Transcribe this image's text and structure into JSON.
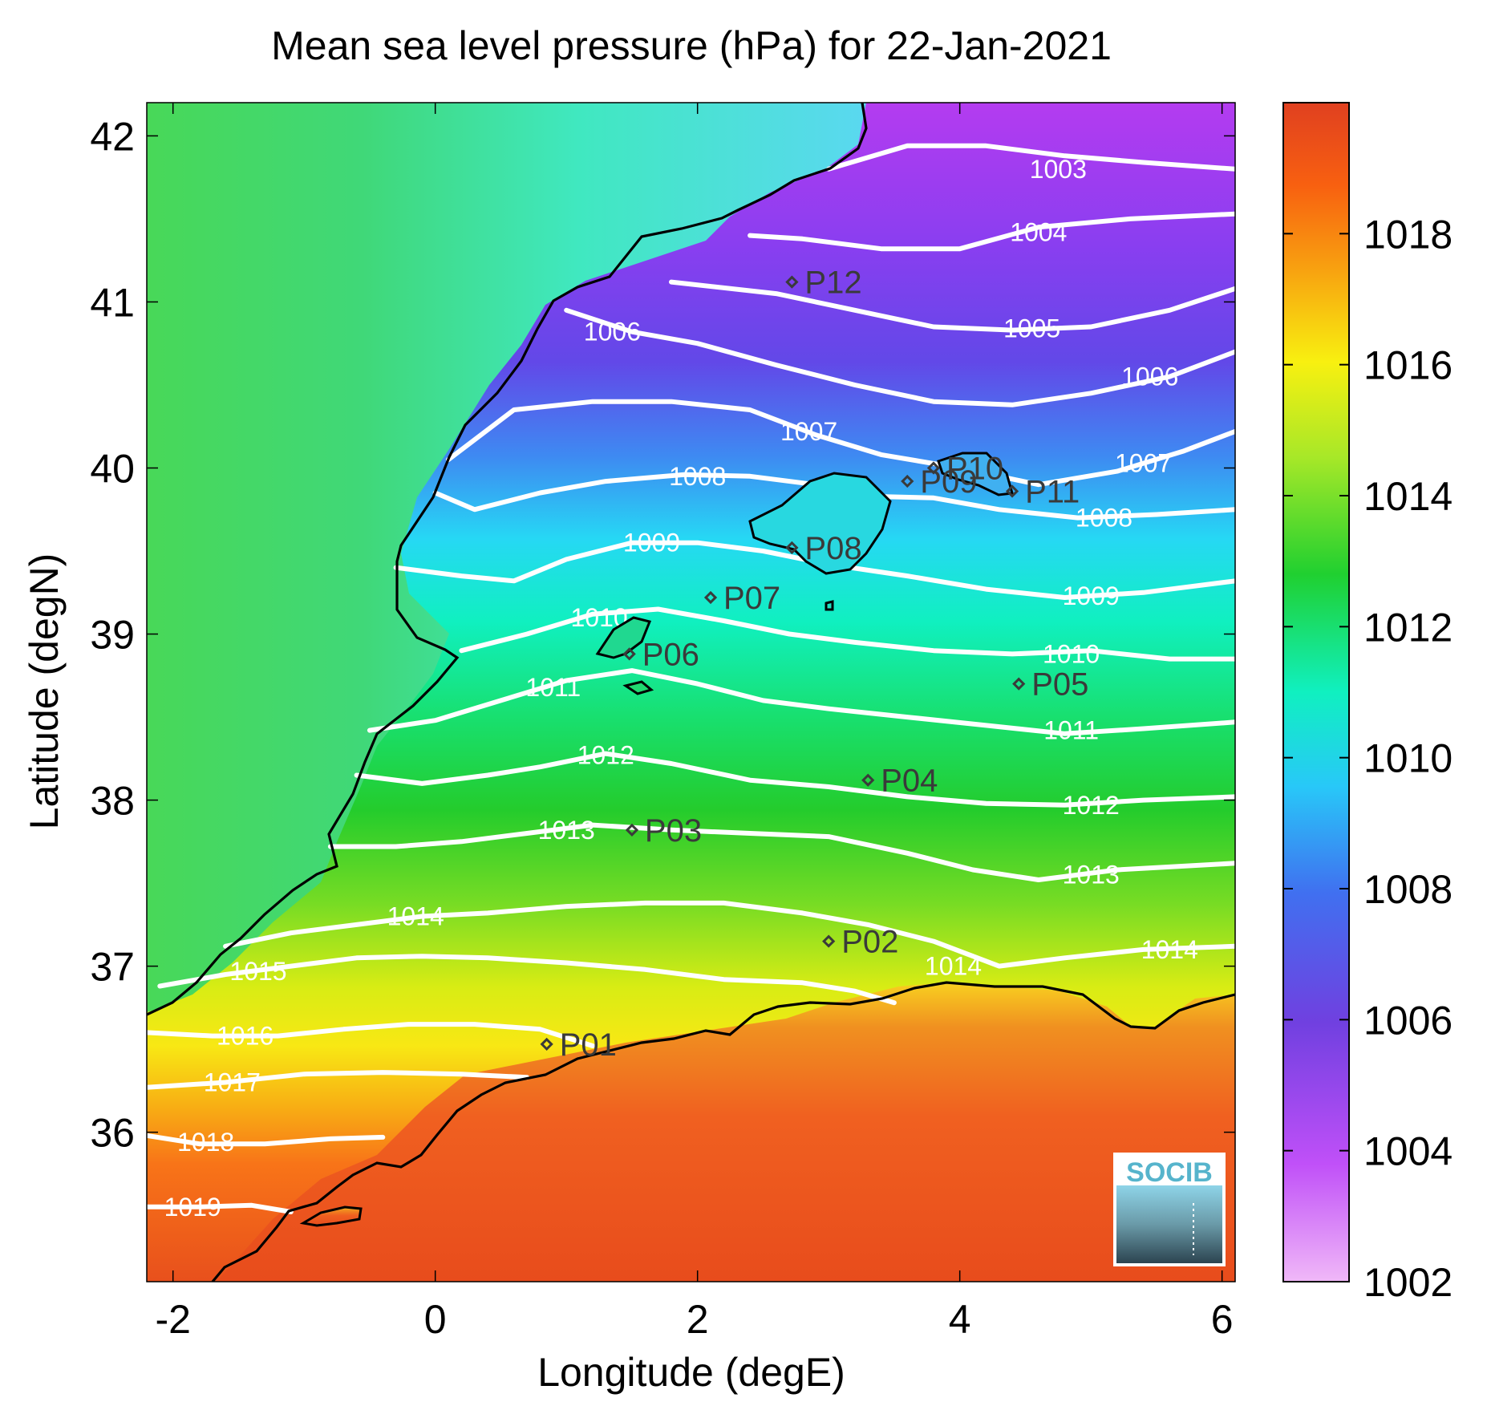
{
  "title": "Mean sea level pressure (hPa) for 22-Jan-2021",
  "xlabel": "Longitude (degE)",
  "ylabel": "Latitude (degN)",
  "x_ticks": [
    {
      "value": -2,
      "label": "-2"
    },
    {
      "value": 0,
      "label": "0"
    },
    {
      "value": 2,
      "label": "2"
    },
    {
      "value": 4,
      "label": "4"
    },
    {
      "value": 6,
      "label": "6"
    }
  ],
  "y_ticks": [
    {
      "value": 36,
      "label": "36"
    },
    {
      "value": 37,
      "label": "37"
    },
    {
      "value": 38,
      "label": "38"
    },
    {
      "value": 39,
      "label": "39"
    },
    {
      "value": 40,
      "label": "40"
    },
    {
      "value": 41,
      "label": "41"
    },
    {
      "value": 42,
      "label": "42"
    }
  ],
  "colorbar": {
    "range": [
      1002,
      1020
    ],
    "ticks": [
      {
        "value": 1002,
        "label": "1002"
      },
      {
        "value": 1004,
        "label": "1004"
      },
      {
        "value": 1006,
        "label": "1006"
      },
      {
        "value": 1008,
        "label": "1008"
      },
      {
        "value": 1010,
        "label": "1010"
      },
      {
        "value": 1012,
        "label": "1012"
      },
      {
        "value": 1014,
        "label": "1014"
      },
      {
        "value": 1016,
        "label": "1016"
      },
      {
        "value": 1018,
        "label": "1018"
      }
    ],
    "colors": [
      "#f0b8f8",
      "#c050f8",
      "#7040e0",
      "#4070f0",
      "#28c8f8",
      "#10f0c0",
      "#20d030",
      "#a8e828",
      "#f8f010",
      "#f8a010",
      "#f86010",
      "#e04020"
    ]
  },
  "logo": "SOCIB",
  "chart_data": {
    "type": "heatmap",
    "title": "Mean sea level pressure (hPa) for 22-Jan-2021",
    "xlabel": "Longitude (degE)",
    "ylabel": "Latitude (degN)",
    "xlim": [
      -2.2,
      6.1
    ],
    "ylim": [
      35.1,
      42.2
    ],
    "colorbar_range": [
      1002,
      1020
    ],
    "isobars": [
      {
        "value": 1003,
        "label": "1003",
        "points": [
          [
            3.0,
            41.8
          ],
          [
            3.6,
            41.94
          ],
          [
            4.2,
            41.94
          ],
          [
            4.8,
            41.88
          ],
          [
            5.4,
            41.84
          ],
          [
            6.1,
            41.8
          ]
        ]
      },
      {
        "value": 1004,
        "label": "1004",
        "points": [
          [
            2.4,
            41.4
          ],
          [
            2.8,
            41.38
          ],
          [
            3.4,
            41.32
          ],
          [
            4.0,
            41.32
          ],
          [
            4.6,
            41.45
          ],
          [
            5.3,
            41.5
          ],
          [
            6.1,
            41.53
          ]
        ]
      },
      {
        "value": 1005,
        "label": "1005",
        "points": [
          [
            1.8,
            41.12
          ],
          [
            2.6,
            41.05
          ],
          [
            3.2,
            40.95
          ],
          [
            3.8,
            40.85
          ],
          [
            4.4,
            40.83
          ],
          [
            5.0,
            40.85
          ],
          [
            5.6,
            40.95
          ],
          [
            6.1,
            41.08
          ]
        ]
      },
      {
        "value": 1006,
        "label": "1006",
        "points": [
          [
            1.0,
            40.95
          ],
          [
            1.5,
            40.82
          ],
          [
            2.0,
            40.75
          ],
          [
            2.6,
            40.62
          ],
          [
            3.2,
            40.5
          ],
          [
            3.8,
            40.4
          ],
          [
            4.4,
            40.38
          ],
          [
            5.0,
            40.45
          ],
          [
            5.6,
            40.55
          ],
          [
            6.1,
            40.7
          ]
        ]
      },
      {
        "value": 1007,
        "label": "1007",
        "points": [
          [
            0.1,
            40.05
          ],
          [
            0.6,
            40.35
          ],
          [
            1.2,
            40.4
          ],
          [
            1.8,
            40.4
          ],
          [
            2.4,
            40.35
          ],
          [
            2.9,
            40.2
          ],
          [
            3.4,
            40.08
          ],
          [
            4.0,
            40.0
          ],
          [
            4.6,
            39.9
          ],
          [
            5.2,
            39.98
          ],
          [
            5.7,
            40.1
          ],
          [
            6.1,
            40.22
          ]
        ]
      },
      {
        "value": 1008,
        "label": "1008",
        "points": [
          [
            0.0,
            39.85
          ],
          [
            0.3,
            39.75
          ],
          [
            0.8,
            39.85
          ],
          [
            1.3,
            39.92
          ],
          [
            1.9,
            39.96
          ],
          [
            2.4,
            39.95
          ],
          [
            2.9,
            39.9
          ],
          [
            3.3,
            39.83
          ],
          [
            3.8,
            39.82
          ],
          [
            4.3,
            39.75
          ],
          [
            4.9,
            39.7
          ],
          [
            5.5,
            39.72
          ],
          [
            6.1,
            39.75
          ]
        ]
      },
      {
        "value": 1009,
        "label": "1009",
        "points": [
          [
            -0.3,
            39.4
          ],
          [
            0.2,
            39.35
          ],
          [
            0.6,
            39.32
          ],
          [
            1.0,
            39.45
          ],
          [
            1.5,
            39.55
          ],
          [
            2.0,
            39.55
          ],
          [
            2.5,
            39.5
          ],
          [
            3.0,
            39.42
          ],
          [
            3.6,
            39.35
          ],
          [
            4.2,
            39.27
          ],
          [
            4.8,
            39.22
          ],
          [
            5.4,
            39.25
          ],
          [
            6.1,
            39.32
          ]
        ]
      },
      {
        "value": 1010,
        "label": "1010",
        "points": [
          [
            0.2,
            38.9
          ],
          [
            0.7,
            39.0
          ],
          [
            1.2,
            39.12
          ],
          [
            1.7,
            39.15
          ],
          [
            2.2,
            39.08
          ],
          [
            2.7,
            39.0
          ],
          [
            3.2,
            38.95
          ],
          [
            3.8,
            38.9
          ],
          [
            4.4,
            38.88
          ],
          [
            5.0,
            38.9
          ],
          [
            5.6,
            38.85
          ],
          [
            6.1,
            38.85
          ]
        ]
      },
      {
        "value": 1011,
        "label": "1011",
        "points": [
          [
            -0.5,
            38.42
          ],
          [
            0.0,
            38.48
          ],
          [
            0.5,
            38.6
          ],
          [
            1.0,
            38.72
          ],
          [
            1.5,
            38.78
          ],
          [
            2.0,
            38.7
          ],
          [
            2.5,
            38.6
          ],
          [
            3.0,
            38.55
          ],
          [
            3.6,
            38.5
          ],
          [
            4.2,
            38.45
          ],
          [
            4.8,
            38.4
          ],
          [
            5.4,
            38.43
          ],
          [
            6.1,
            38.47
          ]
        ]
      },
      {
        "value": 1012,
        "label": "1012",
        "points": [
          [
            -0.6,
            38.15
          ],
          [
            -0.1,
            38.1
          ],
          [
            0.4,
            38.15
          ],
          [
            0.8,
            38.2
          ],
          [
            1.3,
            38.28
          ],
          [
            1.8,
            38.22
          ],
          [
            2.4,
            38.12
          ],
          [
            3.0,
            38.08
          ],
          [
            3.6,
            38.02
          ],
          [
            4.2,
            37.98
          ],
          [
            4.8,
            37.97
          ],
          [
            5.4,
            38.0
          ],
          [
            6.1,
            38.02
          ]
        ]
      },
      {
        "value": 1013,
        "label": "1013",
        "points": [
          [
            -0.8,
            37.72
          ],
          [
            -0.3,
            37.72
          ],
          [
            0.2,
            37.75
          ],
          [
            0.7,
            37.8
          ],
          [
            1.2,
            37.85
          ],
          [
            1.8,
            37.82
          ],
          [
            2.4,
            37.8
          ],
          [
            3.0,
            37.78
          ],
          [
            3.6,
            37.68
          ],
          [
            4.1,
            37.58
          ],
          [
            4.6,
            37.52
          ],
          [
            5.2,
            37.58
          ],
          [
            6.1,
            37.62
          ]
        ]
      },
      {
        "value": 1014,
        "label": "1014",
        "points": [
          [
            -1.6,
            37.12
          ],
          [
            -1.1,
            37.2
          ],
          [
            -0.6,
            37.25
          ],
          [
            -0.1,
            37.3
          ],
          [
            0.4,
            37.32
          ],
          [
            1.0,
            37.36
          ],
          [
            1.6,
            37.38
          ],
          [
            2.2,
            37.38
          ],
          [
            2.8,
            37.32
          ],
          [
            3.3,
            37.25
          ],
          [
            3.8,
            37.15
          ],
          [
            4.3,
            37.0
          ],
          [
            4.8,
            37.05
          ],
          [
            5.4,
            37.1
          ],
          [
            6.1,
            37.12
          ]
        ]
      },
      {
        "value": 1015,
        "label": "1015",
        "points": [
          [
            -2.1,
            36.88
          ],
          [
            -1.6,
            36.95
          ],
          [
            -1.1,
            37.0
          ],
          [
            -0.6,
            37.05
          ],
          [
            -0.1,
            37.06
          ],
          [
            0.4,
            37.05
          ],
          [
            1.0,
            37.02
          ],
          [
            1.6,
            36.98
          ],
          [
            2.2,
            36.92
          ],
          [
            2.8,
            36.9
          ],
          [
            3.2,
            36.85
          ],
          [
            3.5,
            36.78
          ]
        ]
      },
      {
        "value": 1016,
        "label": "1016",
        "points": [
          [
            -2.2,
            36.6
          ],
          [
            -1.7,
            36.58
          ],
          [
            -1.2,
            36.58
          ],
          [
            -0.7,
            36.62
          ],
          [
            -0.2,
            36.65
          ],
          [
            0.3,
            36.65
          ],
          [
            0.8,
            36.62
          ],
          [
            1.2,
            36.52
          ]
        ]
      },
      {
        "value": 1017,
        "label": "1017",
        "points": [
          [
            -2.2,
            36.27
          ],
          [
            -1.6,
            36.3
          ],
          [
            -1.0,
            36.35
          ],
          [
            -0.4,
            36.36
          ],
          [
            0.2,
            36.35
          ],
          [
            0.7,
            36.33
          ]
        ]
      },
      {
        "value": 1018,
        "label": "1018",
        "points": [
          [
            -2.2,
            35.98
          ],
          [
            -1.8,
            35.93
          ],
          [
            -1.3,
            35.93
          ],
          [
            -0.8,
            35.96
          ],
          [
            -0.4,
            35.97
          ]
        ]
      },
      {
        "value": 1019,
        "label": "1019",
        "points": [
          [
            -2.2,
            35.55
          ],
          [
            -1.8,
            35.55
          ],
          [
            -1.4,
            35.56
          ],
          [
            -1.1,
            35.52
          ]
        ]
      }
    ],
    "isobar_labels": [
      {
        "text": "1003",
        "lon": 4.75,
        "lat": 41.8
      },
      {
        "text": "1004",
        "lon": 4.6,
        "lat": 41.42
      },
      {
        "text": "1005",
        "lon": 4.55,
        "lat": 40.84
      },
      {
        "text": "1006",
        "lon": 1.35,
        "lat": 40.82
      },
      {
        "text": "1006",
        "lon": 5.45,
        "lat": 40.55
      },
      {
        "text": "1007",
        "lon": 2.85,
        "lat": 40.22
      },
      {
        "text": "1007",
        "lon": 5.4,
        "lat": 40.03
      },
      {
        "text": "1008",
        "lon": 2.0,
        "lat": 39.95
      },
      {
        "text": "1008",
        "lon": 5.1,
        "lat": 39.7
      },
      {
        "text": "1009",
        "lon": 1.65,
        "lat": 39.55
      },
      {
        "text": "1009",
        "lon": 5.0,
        "lat": 39.23
      },
      {
        "text": "1010",
        "lon": 1.25,
        "lat": 39.1
      },
      {
        "text": "1010",
        "lon": 4.85,
        "lat": 38.88
      },
      {
        "text": "1011",
        "lon": 0.9,
        "lat": 38.68
      },
      {
        "text": "1011",
        "lon": 4.85,
        "lat": 38.42
      },
      {
        "text": "1012",
        "lon": 1.3,
        "lat": 38.27
      },
      {
        "text": "1012",
        "lon": 5.0,
        "lat": 37.97
      },
      {
        "text": "1013",
        "lon": 1.0,
        "lat": 37.82
      },
      {
        "text": "1013",
        "lon": 5.0,
        "lat": 37.55
      },
      {
        "text": "1014",
        "lon": -0.15,
        "lat": 37.3
      },
      {
        "text": "1014",
        "lon": 3.95,
        "lat": 37.0
      },
      {
        "text": "1014",
        "lon": 5.6,
        "lat": 37.1
      },
      {
        "text": "1015",
        "lon": -1.35,
        "lat": 36.97
      },
      {
        "text": "1016",
        "lon": -1.45,
        "lat": 36.58
      },
      {
        "text": "1017",
        "lon": -1.55,
        "lat": 36.3
      },
      {
        "text": "1018",
        "lon": -1.75,
        "lat": 35.94
      },
      {
        "text": "1019",
        "lon": -1.85,
        "lat": 35.55
      }
    ],
    "stations": [
      {
        "name": "P01",
        "lon": 0.85,
        "lat": 36.53
      },
      {
        "name": "P02",
        "lon": 3.0,
        "lat": 37.15
      },
      {
        "name": "P03",
        "lon": 1.5,
        "lat": 37.82
      },
      {
        "name": "P04",
        "lon": 3.3,
        "lat": 38.12
      },
      {
        "name": "P05",
        "lon": 4.45,
        "lat": 38.7
      },
      {
        "name": "P06",
        "lon": 1.48,
        "lat": 38.88
      },
      {
        "name": "P07",
        "lon": 2.1,
        "lat": 39.22
      },
      {
        "name": "P08",
        "lon": 2.72,
        "lat": 39.52
      },
      {
        "name": "P09",
        "lon": 3.6,
        "lat": 39.92
      },
      {
        "name": "P10",
        "lon": 3.8,
        "lat": 40.0
      },
      {
        "name": "P11",
        "lon": 4.4,
        "lat": 39.86
      },
      {
        "name": "P12",
        "lon": 2.72,
        "lat": 41.12
      }
    ]
  }
}
